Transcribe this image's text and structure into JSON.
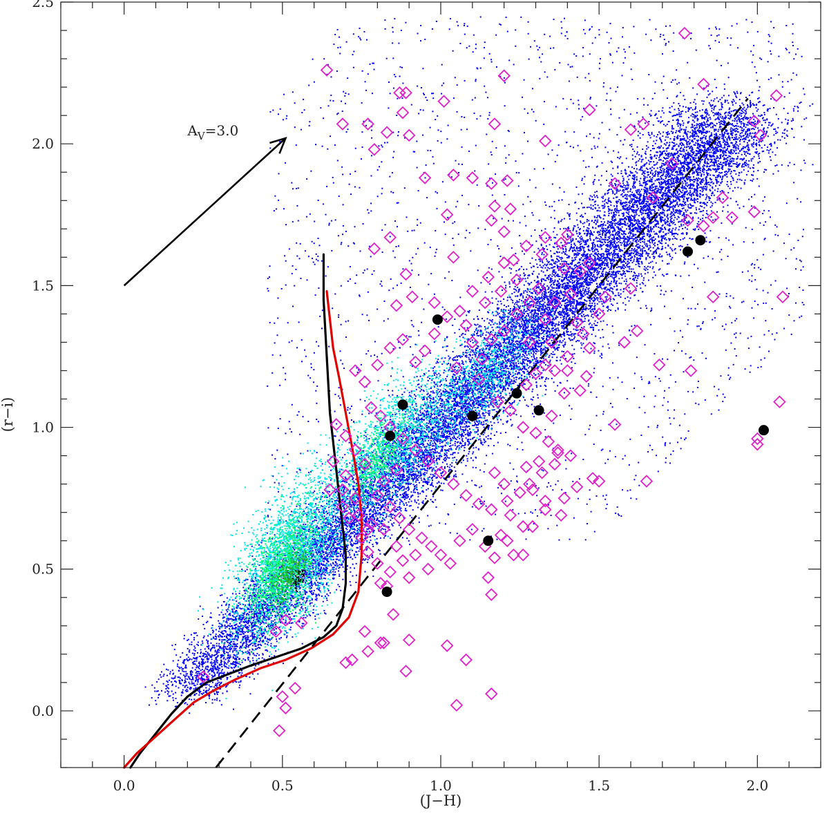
{
  "chart_data": {
    "type": "scatter",
    "title": "",
    "xlabel": "(J−H)",
    "ylabel": "(r−i)",
    "xlim": [
      -0.2,
      2.2
    ],
    "ylim": [
      -0.2,
      2.5
    ],
    "xticks": [
      0.0,
      0.5,
      1.0,
      1.5,
      2.0
    ],
    "xtick_labels": [
      "0.0",
      "0.5",
      "1.0",
      "1.5",
      "2.0"
    ],
    "yticks": [
      0.0,
      0.5,
      1.0,
      1.5,
      2.0,
      2.5
    ],
    "ytick_labels": [
      "0.0",
      "0.5",
      "1.0",
      "1.5",
      "2.0",
      "2.5"
    ],
    "grid": false,
    "density_colors": [
      "#0000ff",
      "#00e5e5",
      "#00ff66",
      "#22aa22",
      "#000000"
    ],
    "annotation": {
      "text_main": "A",
      "text_sub": "V",
      "text_rest": "=3.0",
      "arrow_from": [
        0.0,
        1.5
      ],
      "arrow_to": [
        0.51,
        2.02
      ]
    },
    "series": [
      {
        "kind": "diamonds",
        "color": "#e020c8",
        "points": [
          [
            0.64,
            2.26
          ],
          [
            0.69,
            2.07
          ],
          [
            0.77,
            2.07
          ],
          [
            0.79,
            1.98
          ],
          [
            0.83,
            2.04
          ],
          [
            0.87,
            2.18
          ],
          [
            0.89,
            2.18
          ],
          [
            0.88,
            2.11
          ],
          [
            0.9,
            2.03
          ],
          [
            1.01,
            2.15
          ],
          [
            1.2,
            2.24
          ],
          [
            1.17,
            2.07
          ],
          [
            1.33,
            2.01
          ],
          [
            1.47,
            2.12
          ],
          [
            1.6,
            2.05
          ],
          [
            1.64,
            2.07
          ],
          [
            1.77,
            2.39
          ],
          [
            1.83,
            2.21
          ],
          [
            1.99,
            2.08
          ],
          [
            2.01,
            2.03
          ],
          [
            2.06,
            2.17
          ],
          [
            0.95,
            1.88
          ],
          [
            1.04,
            1.89
          ],
          [
            1.1,
            1.88
          ],
          [
            1.21,
            1.87
          ],
          [
            1.16,
            1.86
          ],
          [
            1.02,
            1.75
          ],
          [
            1.17,
            1.78
          ],
          [
            1.22,
            1.77
          ],
          [
            1.16,
            1.73
          ],
          [
            1.2,
            1.69
          ],
          [
            0.84,
            1.67
          ],
          [
            0.89,
            1.54
          ],
          [
            0.79,
            1.63
          ],
          [
            1.04,
            1.6
          ],
          [
            1.23,
            1.59
          ],
          [
            1.32,
            1.61
          ],
          [
            1.38,
            1.65
          ],
          [
            1.47,
            1.58
          ],
          [
            1.55,
            1.86
          ],
          [
            1.67,
            1.81
          ],
          [
            1.73,
            1.93
          ],
          [
            1.78,
            1.73
          ],
          [
            1.83,
            1.71
          ],
          [
            1.86,
            1.74
          ],
          [
            1.89,
            1.81
          ],
          [
            1.92,
            1.74
          ],
          [
            1.99,
            1.76
          ],
          [
            2.08,
            1.46
          ],
          [
            1.86,
            1.46
          ],
          [
            1.69,
            1.22
          ],
          [
            1.79,
            1.2
          ],
          [
            2.07,
            1.09
          ],
          [
            2.0,
            0.96
          ],
          [
            2.0,
            0.94
          ],
          [
            1.65,
            0.81
          ],
          [
            1.5,
            0.81
          ],
          [
            1.48,
            0.82
          ],
          [
            1.55,
            1.01
          ],
          [
            1.58,
            1.3
          ],
          [
            1.62,
            1.34
          ],
          [
            1.6,
            1.49
          ],
          [
            1.52,
            1.46
          ],
          [
            1.5,
            1.4
          ],
          [
            1.45,
            1.33
          ],
          [
            1.43,
            1.37
          ],
          [
            1.47,
            1.28
          ],
          [
            1.4,
            1.25
          ],
          [
            1.36,
            1.2
          ],
          [
            1.33,
            1.22
          ],
          [
            1.3,
            1.19
          ],
          [
            1.27,
            1.15
          ],
          [
            1.28,
            1.3
          ],
          [
            1.24,
            1.4
          ],
          [
            1.2,
            1.34
          ],
          [
            1.16,
            1.31
          ],
          [
            1.13,
            1.24
          ],
          [
            1.1,
            1.3
          ],
          [
            1.08,
            1.36
          ],
          [
            1.06,
            1.41
          ],
          [
            1.02,
            1.39
          ],
          [
            0.98,
            1.33
          ],
          [
            0.95,
            1.27
          ],
          [
            0.92,
            1.23
          ],
          [
            0.88,
            1.31
          ],
          [
            0.84,
            1.28
          ],
          [
            0.8,
            1.22
          ],
          [
            0.76,
            1.16
          ],
          [
            0.73,
            1.2
          ],
          [
            0.86,
            1.43
          ],
          [
            0.91,
            1.46
          ],
          [
            0.98,
            1.44
          ],
          [
            1.05,
            1.21
          ],
          [
            1.12,
            1.17
          ],
          [
            1.18,
            1.09
          ],
          [
            1.22,
            1.06
          ],
          [
            1.26,
            1.0
          ],
          [
            1.3,
            0.98
          ],
          [
            1.34,
            0.95
          ],
          [
            1.37,
            0.92
          ],
          [
            1.41,
            0.9
          ],
          [
            1.36,
            0.87
          ],
          [
            1.32,
            0.84
          ],
          [
            1.28,
            0.8
          ],
          [
            1.25,
            0.77
          ],
          [
            1.21,
            0.74
          ],
          [
            1.16,
            0.71
          ],
          [
            1.12,
            0.73
          ],
          [
            1.08,
            0.76
          ],
          [
            1.04,
            0.8
          ],
          [
            1.0,
            0.84
          ],
          [
            0.96,
            0.88
          ],
          [
            0.92,
            0.92
          ],
          [
            0.88,
            0.96
          ],
          [
            0.84,
            1.0
          ],
          [
            0.81,
            1.04
          ],
          [
            0.78,
            1.07
          ],
          [
            0.86,
            0.85
          ],
          [
            0.82,
            0.81
          ],
          [
            0.8,
            0.76
          ],
          [
            0.84,
            0.72
          ],
          [
            0.87,
            0.68
          ],
          [
            0.9,
            0.64
          ],
          [
            0.94,
            0.61
          ],
          [
            0.97,
            0.58
          ],
          [
            1.0,
            0.55
          ],
          [
            1.03,
            0.52
          ],
          [
            0.96,
            0.5
          ],
          [
            0.9,
            0.47
          ],
          [
            0.84,
            0.49
          ],
          [
            0.8,
            0.52
          ],
          [
            0.77,
            0.56
          ],
          [
            0.75,
            0.61
          ],
          [
            0.78,
            0.66
          ],
          [
            0.82,
            0.64
          ],
          [
            0.86,
            0.58
          ],
          [
            0.88,
            0.53
          ],
          [
            0.92,
            0.55
          ],
          [
            1.06,
            0.6
          ],
          [
            1.1,
            0.64
          ],
          [
            1.14,
            0.58
          ],
          [
            1.19,
            0.62
          ],
          [
            1.22,
            0.69
          ],
          [
            1.29,
            0.65
          ],
          [
            1.23,
            0.55
          ],
          [
            1.17,
            0.54
          ],
          [
            1.29,
            0.78
          ],
          [
            1.33,
            0.74
          ],
          [
            1.38,
            0.69
          ],
          [
            1.39,
            0.75
          ],
          [
            1.43,
            0.79
          ],
          [
            1.15,
            0.47
          ],
          [
            1.16,
            0.41
          ],
          [
            1.26,
            0.55
          ],
          [
            0.73,
            0.75
          ],
          [
            0.69,
            0.78
          ],
          [
            0.76,
            0.87
          ],
          [
            0.7,
            0.83
          ],
          [
            0.73,
            0.92
          ],
          [
            0.7,
            0.97
          ],
          [
            0.67,
            1.01
          ],
          [
            0.66,
            0.88
          ],
          [
            0.69,
            0.72
          ],
          [
            0.65,
            0.78
          ],
          [
            0.71,
            0.68
          ],
          [
            0.74,
            0.69
          ],
          [
            0.77,
            0.64
          ],
          [
            0.81,
            0.45
          ],
          [
            0.83,
            0.44
          ],
          [
            0.85,
            0.34
          ],
          [
            0.76,
            0.28
          ],
          [
            0.77,
            0.21
          ],
          [
            0.81,
            0.24
          ],
          [
            0.82,
            0.24
          ],
          [
            0.72,
            0.18
          ],
          [
            0.7,
            0.17
          ],
          [
            0.51,
            0.32
          ],
          [
            0.56,
            0.31
          ],
          [
            0.48,
            0.28
          ],
          [
            0.25,
            0.12
          ],
          [
            0.54,
            0.08
          ],
          [
            0.5,
            0.05
          ],
          [
            0.51,
            0.01
          ],
          [
            0.49,
            -0.07
          ],
          [
            0.89,
            0.14
          ],
          [
            0.9,
            0.25
          ],
          [
            1.02,
            0.23
          ],
          [
            1.05,
            0.02
          ],
          [
            1.16,
            0.06
          ],
          [
            1.08,
            0.18
          ],
          [
            1.21,
            0.6
          ],
          [
            1.26,
            0.65
          ],
          [
            1.33,
            0.71
          ],
          [
            1.2,
            0.8
          ],
          [
            1.17,
            0.84
          ],
          [
            1.27,
            0.86
          ],
          [
            1.31,
            0.88
          ],
          [
            1.37,
            0.91
          ],
          [
            1.35,
            1.04
          ],
          [
            1.39,
            1.12
          ],
          [
            1.44,
            1.13
          ],
          [
            1.46,
            1.18
          ],
          [
            1.4,
            1.2
          ],
          [
            1.35,
            1.3
          ],
          [
            1.33,
            1.38
          ],
          [
            1.36,
            1.44
          ],
          [
            1.41,
            1.47
          ],
          [
            1.44,
            1.55
          ],
          [
            1.39,
            1.56
          ],
          [
            1.31,
            1.49
          ],
          [
            1.28,
            1.44
          ],
          [
            1.24,
            1.52
          ],
          [
            1.19,
            1.48
          ],
          [
            1.14,
            1.44
          ],
          [
            1.1,
            1.48
          ],
          [
            1.15,
            1.53
          ],
          [
            1.2,
            1.58
          ],
          [
            1.27,
            1.64
          ],
          [
            1.33,
            1.67
          ],
          [
            1.4,
            1.68
          ]
        ]
      },
      {
        "kind": "filled-circles",
        "color": "#000000",
        "points": [
          [
            0.99,
            1.38
          ],
          [
            0.88,
            1.08
          ],
          [
            0.84,
            0.97
          ],
          [
            1.1,
            1.04
          ],
          [
            1.24,
            1.12
          ],
          [
            1.31,
            1.06
          ],
          [
            1.78,
            1.62
          ],
          [
            1.82,
            1.66
          ],
          [
            2.02,
            0.99
          ],
          [
            1.15,
            0.6
          ],
          [
            0.83,
            0.42
          ]
        ]
      },
      {
        "kind": "line",
        "color": "#000000",
        "points": [
          [
            0.02,
            -0.2
          ],
          [
            0.05,
            -0.15
          ],
          [
            0.1,
            -0.08
          ],
          [
            0.15,
            -0.01
          ],
          [
            0.2,
            0.05
          ],
          [
            0.26,
            0.1
          ],
          [
            0.33,
            0.13
          ],
          [
            0.4,
            0.16
          ],
          [
            0.48,
            0.19
          ],
          [
            0.56,
            0.22
          ],
          [
            0.63,
            0.26
          ],
          [
            0.67,
            0.3
          ],
          [
            0.69,
            0.36
          ],
          [
            0.7,
            0.45
          ],
          [
            0.7,
            0.55
          ],
          [
            0.69,
            0.65
          ],
          [
            0.68,
            0.75
          ],
          [
            0.67,
            0.85
          ],
          [
            0.66,
            0.95
          ],
          [
            0.65,
            1.05
          ],
          [
            0.645,
            1.15
          ],
          [
            0.64,
            1.25
          ],
          [
            0.635,
            1.35
          ],
          [
            0.63,
            1.45
          ],
          [
            0.63,
            1.55
          ],
          [
            0.63,
            1.61
          ]
        ]
      },
      {
        "kind": "line",
        "color": "#e00000",
        "points": [
          [
            0.0,
            -0.2
          ],
          [
            0.04,
            -0.15
          ],
          [
            0.1,
            -0.09
          ],
          [
            0.16,
            -0.03
          ],
          [
            0.22,
            0.03
          ],
          [
            0.28,
            0.07
          ],
          [
            0.35,
            0.11
          ],
          [
            0.43,
            0.15
          ],
          [
            0.51,
            0.18
          ],
          [
            0.59,
            0.22
          ],
          [
            0.66,
            0.27
          ],
          [
            0.71,
            0.33
          ],
          [
            0.74,
            0.42
          ],
          [
            0.75,
            0.55
          ],
          [
            0.75,
            0.68
          ],
          [
            0.74,
            0.8
          ],
          [
            0.72,
            0.93
          ],
          [
            0.7,
            1.05
          ],
          [
            0.68,
            1.17
          ],
          [
            0.66,
            1.28
          ],
          [
            0.65,
            1.38
          ],
          [
            0.64,
            1.48
          ]
        ]
      },
      {
        "kind": "dashed-line",
        "color": "#000000",
        "points": [
          [
            0.29,
            -0.2
          ],
          [
            1.97,
            2.16
          ]
        ]
      }
    ]
  }
}
